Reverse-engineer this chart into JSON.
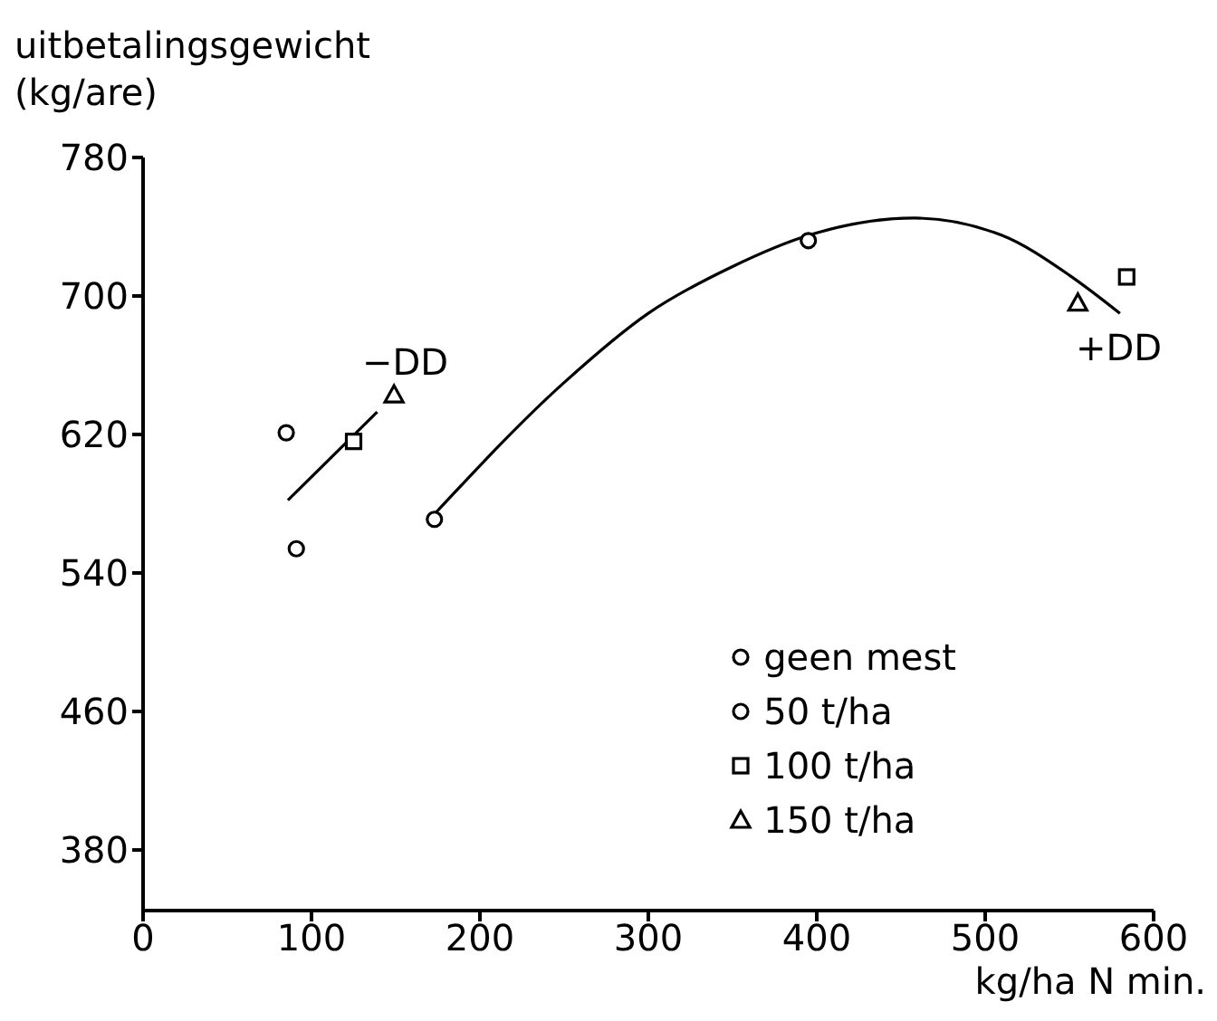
{
  "chart_data": {
    "type": "scatter",
    "ylabel": "uitbetalingsgewicht (kg/are)",
    "xlabel": "kg/ha  N min.",
    "xlim": [
      0,
      600
    ],
    "xticks": [
      0,
      100,
      200,
      300,
      400,
      500,
      600
    ],
    "ylim": [
      345,
      780
    ],
    "yticks": [
      380,
      460,
      540,
      620,
      700,
      780
    ],
    "grid": false,
    "legend": "bottom right",
    "series": [
      {
        "name": "geen mest",
        "marker": "circle",
        "color": "#000000",
        "x": [
          91,
          173
        ],
        "values": [
          554,
          571
        ]
      },
      {
        "name": "50 t/ha",
        "marker": "circle",
        "color": "#000000",
        "x": [
          85,
          395
        ],
        "values": [
          621,
          732
        ]
      },
      {
        "name": "100 t/ha",
        "marker": "square",
        "color": "#000000",
        "x": [
          125,
          584
        ],
        "values": [
          616,
          711
        ]
      },
      {
        "name": "150 t/ha",
        "marker": "triangle",
        "color": "#000000",
        "x": [
          149,
          555
        ],
        "values": [
          643,
          696
        ]
      },
      {
        "type": "line",
        "marker": "none",
        "color": "#000000",
        "x": [
          86,
          139
        ],
        "values": [
          582,
          633
        ]
      },
      {
        "type": "line",
        "marker": "none",
        "color": "#000000",
        "x": [
          173,
          250,
          300,
          350,
          395,
          458,
          510,
          550,
          580
        ],
        "values": [
          574,
          650,
          690,
          717,
          735,
          745,
          735,
          712,
          690
        ]
      }
    ],
    "annotations": [
      "−DD",
      "+DD"
    ]
  }
}
